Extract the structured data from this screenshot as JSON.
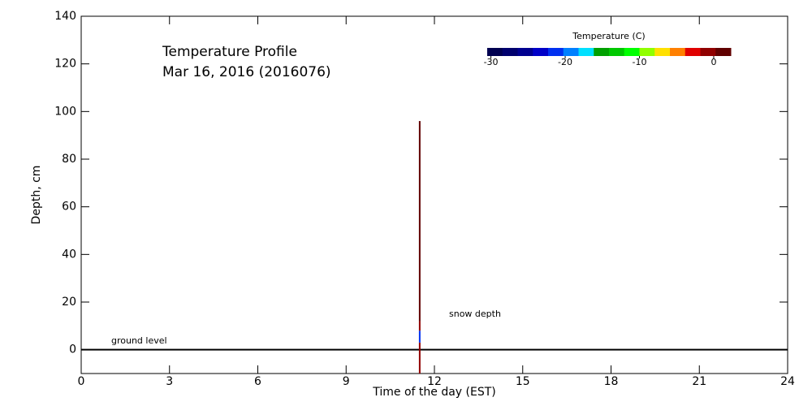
{
  "chart_data": {
    "type": "profile",
    "title": "Temperature Profile",
    "subtitle": "Mar 16, 2016 (2016076)",
    "x_label": "Time of the day (EST)",
    "y_label": "Depth, cm",
    "xlim": [
      0,
      24
    ],
    "xticks": [
      0,
      3,
      6,
      9,
      12,
      15,
      18,
      21,
      24
    ],
    "ylim": [
      -10,
      140
    ],
    "yticks": [
      0,
      20,
      40,
      60,
      80,
      100,
      120,
      140
    ],
    "reference_line": 0,
    "annotations": [
      "ground level",
      "snow depth"
    ],
    "profiles": [
      {
        "x": 11.5,
        "segments": [
          {
            "depth_from": -10,
            "depth_to": 3,
            "temperature": 0
          },
          {
            "depth_from": 3,
            "depth_to": 8,
            "temperature": -22
          },
          {
            "depth_from": 8,
            "depth_to": 12,
            "temperature": 0
          },
          {
            "depth_from": 12,
            "depth_to": 96,
            "temperature": 2
          }
        ]
      }
    ],
    "colorbar": {
      "title": "Temperature (C)",
      "lim": [
        -30.5,
        2.3
      ],
      "ticks": [
        -30,
        -20,
        -10,
        0
      ],
      "colors": [
        "#000050",
        "#00006e",
        "#000090",
        "#0000c8",
        "#0030f0",
        "#0080ff",
        "#00e0ff",
        "#00a000",
        "#00c800",
        "#00ff00",
        "#90ff00",
        "#ffe000",
        "#ff8000",
        "#e00000",
        "#900000",
        "#600000"
      ]
    }
  }
}
